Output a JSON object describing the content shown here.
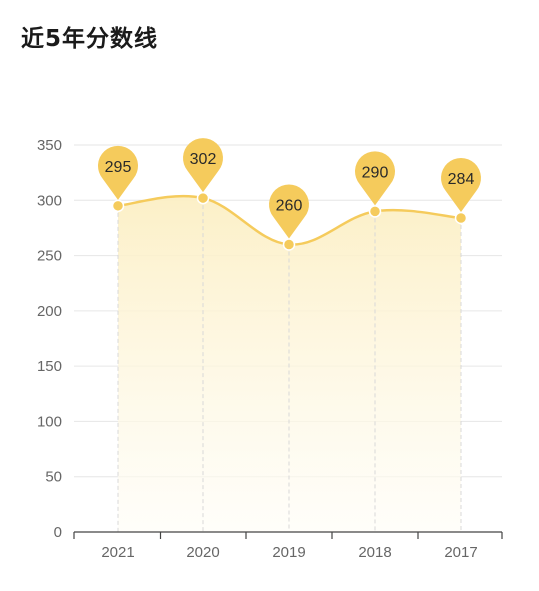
{
  "page_title": "近5年分数线",
  "chart_data": {
    "type": "line",
    "categories": [
      "2021",
      "2020",
      "2019",
      "2018",
      "2017"
    ],
    "values": [
      295,
      302,
      260,
      290,
      284
    ],
    "yticks": [
      0,
      50,
      100,
      150,
      200,
      250,
      300,
      350
    ],
    "ylim": [
      0,
      350
    ],
    "title": "近5年分数线",
    "xlabel": "",
    "ylabel": "",
    "grid": true,
    "colors": {
      "line": "#F5CB5C",
      "marker": "#F5CB5C",
      "area_top": "#FCEFC4",
      "area_bottom": "#FFFDF6",
      "grid": "#E6E6E6",
      "axis": "#444444"
    }
  }
}
